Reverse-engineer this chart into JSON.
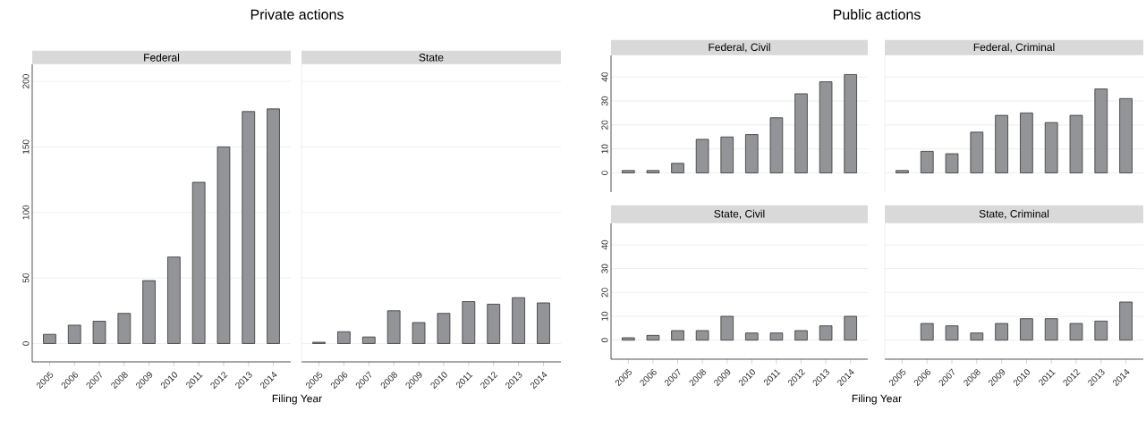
{
  "chart_data": [
    {
      "type": "bar",
      "title": "Private actions",
      "subtitle": "Federal",
      "xlabel": "Filing Year",
      "categories": [
        "2005",
        "2006",
        "2007",
        "2008",
        "2009",
        "2010",
        "2011",
        "2012",
        "2013",
        "2014"
      ],
      "values": [
        7,
        14,
        17,
        23,
        48,
        66,
        123,
        150,
        177,
        179
      ],
      "color": "#929497",
      "ylim": [
        -14,
        213
      ],
      "yticks": [
        0,
        50,
        100,
        150,
        200
      ],
      "grid": "y"
    },
    {
      "type": "bar",
      "subtitle": "State",
      "categories": [
        "2005",
        "2006",
        "2007",
        "2008",
        "2009",
        "2010",
        "2011",
        "2012",
        "2013",
        "2014"
      ],
      "values": [
        1,
        9,
        5,
        25,
        16,
        23,
        32,
        30,
        35,
        31
      ],
      "color": "#929497",
      "ylim": [
        -14,
        213
      ],
      "yticks": [
        0,
        50,
        100,
        150,
        200
      ],
      "grid": "y",
      "tick_labels": "x"
    },
    {
      "type": "bar",
      "title": "Public actions",
      "subtitle": "Federal, Civil",
      "categories": [
        "2005",
        "2006",
        "2007",
        "2008",
        "2009",
        "2010",
        "2011",
        "2012",
        "2013",
        "2014"
      ],
      "values": [
        1,
        1,
        4,
        14,
        15,
        16,
        23,
        33,
        38,
        41
      ],
      "color": "#929497",
      "ylim": [
        -8,
        49
      ],
      "yticks": [
        0,
        10,
        20,
        30,
        40
      ],
      "grid": "y",
      "tick_labels": "y"
    },
    {
      "type": "bar",
      "subtitle": "Federal, Criminal",
      "categories": [
        "2005",
        "2006",
        "2007",
        "2008",
        "2009",
        "2010",
        "2011",
        "2012",
        "2013",
        "2014"
      ],
      "values": [
        1,
        9,
        8,
        17,
        24,
        25,
        21,
        24,
        35,
        31
      ],
      "color": "#929497",
      "ylim": [
        -8,
        49
      ],
      "yticks": [
        0,
        10,
        20,
        30,
        40
      ],
      "grid": "y",
      "tick_labels": false
    },
    {
      "type": "bar",
      "subtitle": "State, Civil",
      "xlabel": "Filing Year",
      "categories": [
        "2005",
        "2006",
        "2007",
        "2008",
        "2009",
        "2010",
        "2011",
        "2012",
        "2013",
        "2014"
      ],
      "values": [
        1,
        2,
        4,
        4,
        10,
        3,
        3,
        4,
        6,
        10
      ],
      "color": "#929497",
      "ylim": [
        -8,
        49
      ],
      "yticks": [
        0,
        10,
        20,
        30,
        40
      ],
      "grid": "y"
    },
    {
      "type": "bar",
      "subtitle": "State, Criminal",
      "categories": [
        "2005",
        "2006",
        "2007",
        "2008",
        "2009",
        "2010",
        "2011",
        "2012",
        "2013",
        "2014"
      ],
      "values": [
        null,
        7,
        6,
        3,
        7,
        9,
        9,
        7,
        8,
        16
      ],
      "color": "#929497",
      "ylim": [
        -8,
        49
      ],
      "yticks": [
        0,
        10,
        20,
        30,
        40
      ],
      "grid": "y",
      "tick_labels": "x"
    }
  ]
}
